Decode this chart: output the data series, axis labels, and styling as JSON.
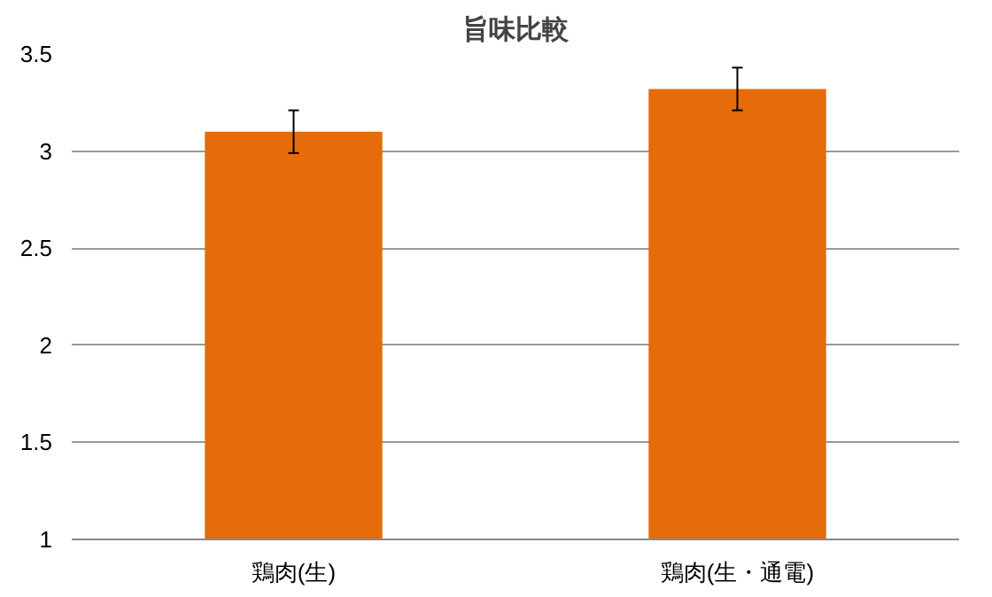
{
  "chart_data": {
    "type": "bar",
    "title": "旨味比較",
    "categories": [
      "鶏肉(生)",
      "鶏肉(生・通電)"
    ],
    "values": [
      3.1,
      3.32
    ],
    "errors": [
      0.11,
      0.11
    ],
    "color": "#e46c0a",
    "ylim": [
      1,
      3.5
    ],
    "yticks": [
      1,
      1.5,
      2,
      2.5,
      3,
      3.5
    ],
    "grid": "y"
  }
}
